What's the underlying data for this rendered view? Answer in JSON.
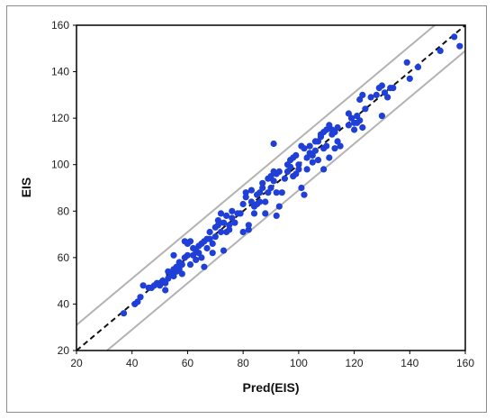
{
  "chart_data": {
    "type": "scatter",
    "xlabel": "Pred(EIS)",
    "ylabel": "EIS",
    "xlim": [
      20,
      160
    ],
    "ylim": [
      20,
      160
    ],
    "x_ticks": [
      20,
      40,
      60,
      80,
      100,
      120,
      140,
      160
    ],
    "y_ticks": [
      20,
      40,
      60,
      80,
      100,
      120,
      140,
      160
    ],
    "grid": false,
    "point_color": "#1f3fd6",
    "identity_line_color": "#111111",
    "band_color": "#b3b3b3",
    "band_offset": 11,
    "series": [
      {
        "points": [
          [
            37,
            36
          ],
          [
            41,
            40
          ],
          [
            42,
            41
          ],
          [
            43,
            43
          ],
          [
            44,
            48
          ],
          [
            46,
            47
          ],
          [
            47,
            47
          ],
          [
            48,
            48
          ],
          [
            49,
            49
          ],
          [
            50,
            48
          ],
          [
            51,
            50
          ],
          [
            52,
            46
          ],
          [
            52,
            49
          ],
          [
            53,
            51
          ],
          [
            53,
            54
          ],
          [
            54,
            53
          ],
          [
            55,
            52
          ],
          [
            55,
            55
          ],
          [
            55,
            61
          ],
          [
            56,
            56
          ],
          [
            56,
            54
          ],
          [
            57,
            58
          ],
          [
            57,
            55
          ],
          [
            58,
            57
          ],
          [
            58,
            53
          ],
          [
            59,
            67
          ],
          [
            59,
            60
          ],
          [
            60,
            61
          ],
          [
            60,
            66
          ],
          [
            61,
            57
          ],
          [
            61,
            67
          ],
          [
            62,
            64
          ],
          [
            62,
            61
          ],
          [
            63,
            63
          ],
          [
            63,
            59
          ],
          [
            64,
            65
          ],
          [
            64,
            62
          ],
          [
            65,
            66
          ],
          [
            65,
            60
          ],
          [
            66,
            67
          ],
          [
            66,
            56
          ],
          [
            67,
            68
          ],
          [
            67,
            64
          ],
          [
            68,
            68
          ],
          [
            68,
            71
          ],
          [
            69,
            62
          ],
          [
            69,
            66
          ],
          [
            70,
            73
          ],
          [
            70,
            69
          ],
          [
            71,
            74
          ],
          [
            71,
            76
          ],
          [
            72,
            71
          ],
          [
            72,
            79
          ],
          [
            73,
            75
          ],
          [
            73,
            63
          ],
          [
            74,
            78
          ],
          [
            74,
            71
          ],
          [
            75,
            74
          ],
          [
            75,
            72
          ],
          [
            76,
            80
          ],
          [
            76,
            77
          ],
          [
            77,
            75
          ],
          [
            78,
            79
          ],
          [
            79,
            79
          ],
          [
            80,
            83
          ],
          [
            80,
            71
          ],
          [
            81,
            86
          ],
          [
            81,
            88
          ],
          [
            82,
            72
          ],
          [
            82,
            74
          ],
          [
            83,
            89
          ],
          [
            83,
            84
          ],
          [
            84,
            79
          ],
          [
            84,
            82
          ],
          [
            85,
            87
          ],
          [
            85,
            83
          ],
          [
            86,
            88
          ],
          [
            86,
            84
          ],
          [
            87,
            92
          ],
          [
            87,
            90
          ],
          [
            88,
            79
          ],
          [
            88,
            84
          ],
          [
            89,
            94
          ],
          [
            89,
            88
          ],
          [
            90,
            95
          ],
          [
            90,
            90
          ],
          [
            91,
            97
          ],
          [
            91,
            93
          ],
          [
            91,
            109
          ],
          [
            92,
            96
          ],
          [
            92,
            78
          ],
          [
            92,
            88
          ],
          [
            93,
            97
          ],
          [
            93,
            82
          ],
          [
            94,
            88
          ],
          [
            95,
            94
          ],
          [
            96,
            100
          ],
          [
            96,
            97
          ],
          [
            97,
            102
          ],
          [
            97,
            99
          ],
          [
            98,
            103
          ],
          [
            98,
            95
          ],
          [
            99,
            96
          ],
          [
            99,
            104
          ],
          [
            100,
            100
          ],
          [
            100,
            98
          ],
          [
            101,
            108
          ],
          [
            101,
            90
          ],
          [
            102,
            107
          ],
          [
            102,
            87
          ],
          [
            103,
            103
          ],
          [
            103,
            98
          ],
          [
            104,
            108
          ],
          [
            104,
            105
          ],
          [
            105,
            104
          ],
          [
            105,
            101
          ],
          [
            106,
            110
          ],
          [
            106,
            106
          ],
          [
            107,
            110
          ],
          [
            107,
            102
          ],
          [
            108,
            113
          ],
          [
            108,
            112
          ],
          [
            109,
            114
          ],
          [
            109,
            107
          ],
          [
            109,
            98
          ],
          [
            110,
            115
          ],
          [
            110,
            108
          ],
          [
            111,
            117
          ],
          [
            111,
            103
          ],
          [
            112,
            115
          ],
          [
            112,
            113
          ],
          [
            113,
            114
          ],
          [
            113,
            107
          ],
          [
            114,
            110
          ],
          [
            114,
            116
          ],
          [
            115,
            108
          ],
          [
            118,
            117
          ],
          [
            118,
            122
          ],
          [
            119,
            120
          ],
          [
            120,
            118
          ],
          [
            120,
            115
          ],
          [
            121,
            121
          ],
          [
            121,
            118
          ],
          [
            122,
            119
          ],
          [
            122,
            128
          ],
          [
            123,
            130
          ],
          [
            123,
            116
          ],
          [
            124,
            124
          ],
          [
            126,
            129
          ],
          [
            128,
            130
          ],
          [
            129,
            133
          ],
          [
            130,
            134
          ],
          [
            130,
            121
          ],
          [
            131,
            131
          ],
          [
            132,
            129
          ],
          [
            133,
            133
          ],
          [
            134,
            133
          ],
          [
            139,
            144
          ],
          [
            140,
            137
          ],
          [
            143,
            142
          ],
          [
            151,
            149
          ],
          [
            156,
            155
          ],
          [
            158,
            151
          ]
        ]
      }
    ]
  }
}
